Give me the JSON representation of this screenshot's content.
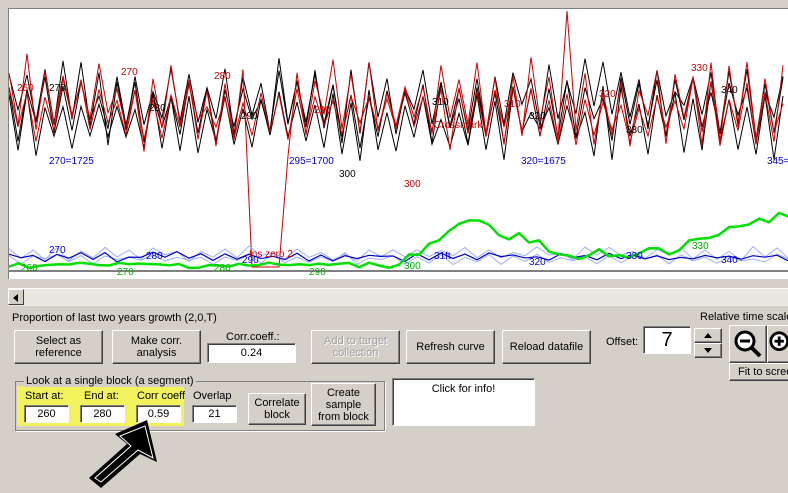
{
  "chart": {
    "colors": {
      "background": "#ffffff",
      "black": "#000000",
      "red": "#cc0000",
      "blue": "#0000cc",
      "green": "#00e000",
      "light_blue": "#9bb0ff"
    },
    "labels_red": [
      "260",
      "270",
      "280",
      "290",
      "Crossmark",
      "300",
      "310",
      "320",
      "330",
      "Ins zero 2"
    ],
    "labels_black": [
      "270",
      "280",
      "290",
      "300",
      "310",
      "320",
      "330",
      "340"
    ],
    "labels_blue": [
      "270=1725",
      "295=1700",
      "320=1675",
      "345=",
      "270",
      "280",
      "290",
      "31ft",
      "320",
      "330",
      "340"
    ],
    "labels_green": [
      "260",
      "270",
      "280",
      "290",
      "300",
      "330"
    ]
  },
  "scrollbar": {
    "left_arrow": "scroll-left"
  },
  "controls": {
    "caption": "Proportion of last two years growth (2,0,T)",
    "select_reference": "Select as\nreference",
    "make_corr": "Make corr.\nanalysis",
    "corr_coeff_label": "Corr.coeff.:",
    "corr_coeff_value": "0.24",
    "add_target": "Add to target\ncollection",
    "refresh_curve": "Refresh curve",
    "reload_datafile": "Reload datafile",
    "offset_label": "Offset:",
    "offset_value": "7",
    "relative_time_scale": "Relative time scale",
    "fit_to_screen": "Fit to scree"
  },
  "block": {
    "group_title": "Look at a single block (a segment)",
    "start_label": "Start at:",
    "start_value": "260",
    "end_label": "End at:",
    "end_value": "280",
    "corr_label": "Corr coeff",
    "corr_value": "0.59",
    "overlap_label": "Overlap",
    "overlap_value": "21",
    "correlate_block": "Correlate\nblock",
    "create_sample": "Create\nsample\nfrom block"
  },
  "info_box": {
    "text": "Click for info!"
  }
}
